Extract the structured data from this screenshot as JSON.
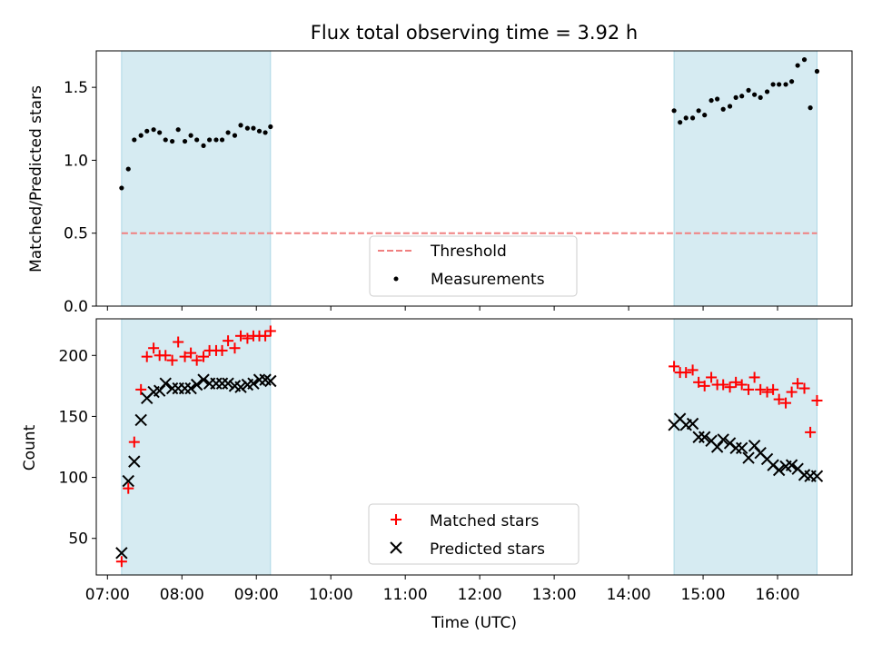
{
  "title": "Flux total observing time = 3.92 h",
  "chart_data": [
    {
      "type": "scatter",
      "ylabel": "Matched/Predicted stars",
      "xlim": [
        6.85,
        17.0
      ],
      "ylim": [
        0,
        1.75
      ],
      "yticks": [
        0.0,
        0.5,
        1.0,
        1.5
      ],
      "ytick_labels": [
        "0.0",
        "0.5",
        "1.0",
        "1.5"
      ],
      "legend_position": "lower center",
      "colors": {
        "threshold": "#f08080",
        "measurements": "#000000",
        "shade": "#add8e6"
      },
      "shaded_intervals": [
        [
          7.19,
          9.19
        ],
        [
          14.61,
          16.53
        ]
      ],
      "threshold": {
        "name": "Threshold",
        "value": 0.5
      },
      "measurements": {
        "name": "Measurements",
        "x": [
          7.19,
          7.28,
          7.36,
          7.45,
          7.53,
          7.62,
          7.7,
          7.78,
          7.87,
          7.95,
          8.04,
          8.12,
          8.2,
          8.29,
          8.37,
          8.46,
          8.54,
          8.62,
          8.71,
          8.79,
          8.88,
          8.96,
          9.04,
          9.12,
          9.19,
          14.61,
          14.69,
          14.77,
          14.86,
          14.94,
          15.02,
          15.11,
          15.19,
          15.27,
          15.36,
          15.44,
          15.52,
          15.61,
          15.69,
          15.77,
          15.86,
          15.94,
          16.02,
          16.11,
          16.19,
          16.27,
          16.36,
          16.44,
          16.53
        ],
        "y": [
          0.81,
          0.94,
          1.14,
          1.17,
          1.2,
          1.21,
          1.19,
          1.14,
          1.13,
          1.21,
          1.13,
          1.17,
          1.14,
          1.1,
          1.14,
          1.14,
          1.14,
          1.19,
          1.17,
          1.24,
          1.22,
          1.22,
          1.2,
          1.19,
          1.23,
          1.34,
          1.26,
          1.29,
          1.29,
          1.34,
          1.31,
          1.41,
          1.42,
          1.35,
          1.37,
          1.43,
          1.44,
          1.48,
          1.45,
          1.43,
          1.47,
          1.52,
          1.52,
          1.52,
          1.54,
          1.65,
          1.69,
          1.36,
          1.61
        ]
      }
    },
    {
      "type": "scatter",
      "xlabel": "Time (UTC)",
      "ylabel": "Count",
      "xlim": [
        6.85,
        17.0
      ],
      "ylim": [
        20,
        230
      ],
      "yticks": [
        50,
        100,
        150,
        200
      ],
      "xticks": [
        7,
        8,
        9,
        10,
        11,
        12,
        13,
        14,
        15,
        16
      ],
      "xtick_labels": [
        "07:00",
        "08:00",
        "09:00",
        "10:00",
        "11:00",
        "12:00",
        "13:00",
        "14:00",
        "15:00",
        "16:00"
      ],
      "legend_position": "lower center",
      "shaded_intervals": [
        [
          7.19,
          9.19
        ],
        [
          14.61,
          16.53
        ]
      ],
      "series": [
        {
          "name": "Matched stars",
          "marker": "plus",
          "color": "#ff0000",
          "x": [
            7.19,
            7.28,
            7.36,
            7.45,
            7.53,
            7.62,
            7.7,
            7.78,
            7.87,
            7.95,
            8.04,
            8.12,
            8.2,
            8.29,
            8.37,
            8.46,
            8.54,
            8.62,
            8.71,
            8.79,
            8.88,
            8.96,
            9.04,
            9.12,
            9.19,
            14.61,
            14.69,
            14.77,
            14.86,
            14.94,
            15.02,
            15.11,
            15.19,
            15.27,
            15.36,
            15.44,
            15.52,
            15.61,
            15.69,
            15.77,
            15.86,
            15.94,
            16.02,
            16.11,
            16.19,
            16.27,
            16.36,
            16.44,
            16.53
          ],
          "y": [
            31,
            91,
            129,
            172,
            199,
            206,
            200,
            200,
            196,
            211,
            199,
            202,
            196,
            199,
            204,
            204,
            204,
            212,
            206,
            216,
            214,
            216,
            216,
            216,
            220,
            191,
            186,
            186,
            188,
            178,
            175,
            182,
            176,
            176,
            174,
            178,
            176,
            172,
            182,
            172,
            170,
            172,
            164,
            161,
            170,
            177,
            173,
            137,
            163
          ]
        },
        {
          "name": "Predicted stars",
          "marker": "x",
          "color": "#000000",
          "x": [
            7.19,
            7.28,
            7.36,
            7.45,
            7.53,
            7.62,
            7.7,
            7.78,
            7.87,
            7.95,
            8.04,
            8.12,
            8.2,
            8.29,
            8.37,
            8.46,
            8.54,
            8.62,
            8.71,
            8.79,
            8.88,
            8.96,
            9.04,
            9.12,
            9.19,
            14.61,
            14.69,
            14.77,
            14.86,
            14.94,
            15.02,
            15.11,
            15.19,
            15.27,
            15.36,
            15.44,
            15.52,
            15.61,
            15.69,
            15.77,
            15.86,
            15.94,
            16.02,
            16.11,
            16.19,
            16.27,
            16.36,
            16.44,
            16.53
          ],
          "y": [
            38,
            97,
            113,
            147,
            165,
            170,
            171,
            177,
            173,
            173,
            173,
            173,
            176,
            180,
            177,
            177,
            177,
            177,
            175,
            174,
            176,
            177,
            180,
            180,
            179,
            143,
            148,
            143,
            144,
            133,
            133,
            130,
            125,
            131,
            128,
            124,
            124,
            116,
            126,
            120,
            115,
            110,
            106,
            109,
            110,
            107,
            102,
            101,
            101
          ]
        }
      ]
    }
  ]
}
